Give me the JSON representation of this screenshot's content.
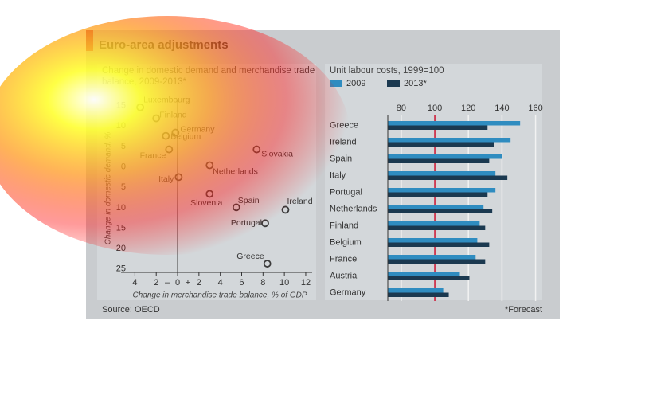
{
  "title": "Euro-area adjustments",
  "source": "Source: OECD",
  "footnote": "*Forecast",
  "chart_data": [
    {
      "type": "scatter",
      "title": "Change in domestic demand and merchandise trade balance, 2009-2013*",
      "x_label": "Change in merchandise trade balance, % of GDP",
      "y_label": "Change in domestic demand, %",
      "labels": [
        "Luxembourg",
        "Finland",
        "Germany",
        "Belgium",
        "France",
        "Slovakia",
        "Netherlands",
        "Italy",
        "Slovenia",
        "Spain",
        "Ireland",
        "Portugal",
        "Greece"
      ],
      "x": [
        -3.5,
        -2.0,
        -0.2,
        -1.1,
        -0.8,
        7.4,
        3.0,
        0.1,
        3.0,
        5.5,
        10.1,
        8.2,
        8.4
      ],
      "y": [
        14.6,
        11.9,
        8.4,
        7.6,
        4.3,
        4.3,
        0.4,
        -2.5,
        -6.6,
        -9.9,
        -10.5,
        -13.8,
        -23.7
      ],
      "color": "#3b3b3b",
      "xlim": [
        -4.7,
        12.6
      ],
      "ylim": [
        -27,
        16.5
      ],
      "xticks": [
        {
          "value": -4,
          "label": "4"
        },
        {
          "value": -2,
          "label": "2"
        },
        0,
        2,
        4,
        6,
        8,
        10,
        12
      ],
      "x_sign_labels": [
        "–",
        "+"
      ],
      "yticks": [
        15,
        10,
        5,
        0,
        {
          "value": -5,
          "label": "5"
        },
        {
          "value": -10,
          "label": "10"
        },
        {
          "value": -15,
          "label": "15"
        },
        {
          "value": -20,
          "label": "20"
        },
        {
          "value": -25,
          "label": "25"
        }
      ]
    },
    {
      "type": "bar",
      "orientation": "horizontal",
      "title": "Unit labour costs, 1999=100",
      "categories": [
        "Greece",
        "Ireland",
        "Spain",
        "Italy",
        "Portugal",
        "Netherlands",
        "Finland",
        "Belgium",
        "France",
        "Austria",
        "Germany"
      ],
      "series": [
        {
          "name": "2009",
          "color": "#2f8cc0",
          "values": [
            150.8,
            145.1,
            139.9,
            136.1,
            136.1,
            129,
            126.7,
            125.3,
            124.3,
            114.9,
            105
          ]
        },
        {
          "name": "2013*",
          "color": "#1b3950",
          "values": [
            131.4,
            135.2,
            132.4,
            143.2,
            131.4,
            134.2,
            130,
            132.4,
            130,
            120.6,
            108.3
          ]
        }
      ],
      "xlim": [
        72,
        164
      ],
      "xticks": [
        80,
        100,
        120,
        140,
        160
      ],
      "reference_line": 100,
      "reference_color": "#c8102e",
      "grid": true,
      "legend": "top-left"
    }
  ]
}
